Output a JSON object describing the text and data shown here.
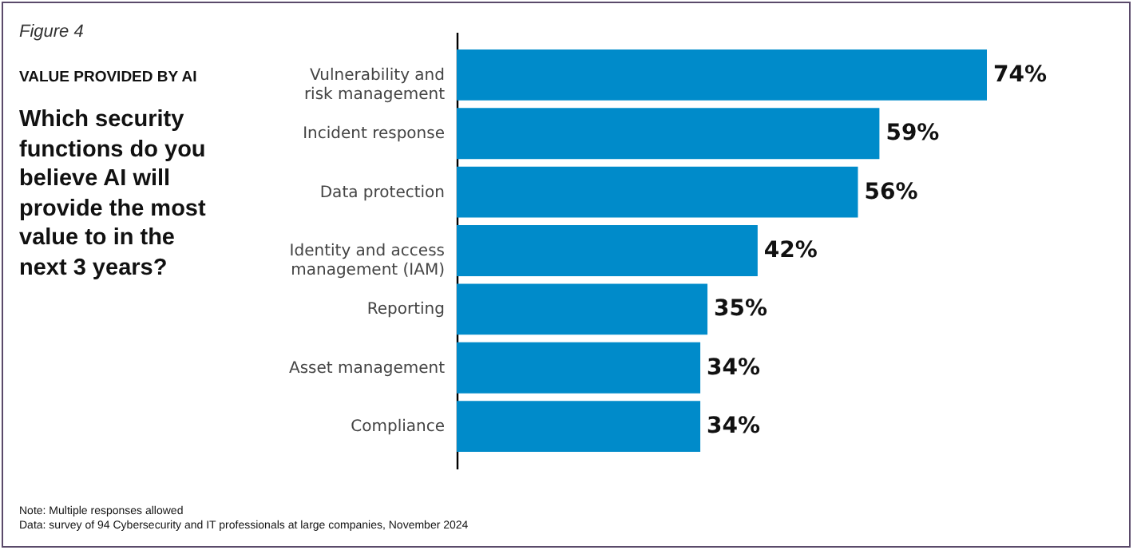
{
  "chart_data": {
    "type": "bar",
    "orientation": "horizontal",
    "title": "VALUE PROVIDED BY AI",
    "subtitle": "Which security functions do you believe AI will provide the most value to in the next 3 years?",
    "annotations": [
      "Figure 4",
      "Note: Multiple responses allowed",
      "Data: survey of 94 Cybersecurity and IT professionals at large companies, November 2024"
    ],
    "categories": [
      "Vulnerability and risk management",
      "Incident response",
      "Data protection",
      "Identity and access management (IAM)",
      "Reporting",
      "Asset management",
      "Compliance"
    ],
    "values": [
      74,
      59,
      56,
      42,
      35,
      34,
      34
    ],
    "value_labels": [
      "74%",
      "59%",
      "56%",
      "42%",
      "35%",
      "34%",
      "34%"
    ],
    "color": "#008bca",
    "tick_labels": "y"
  }
}
